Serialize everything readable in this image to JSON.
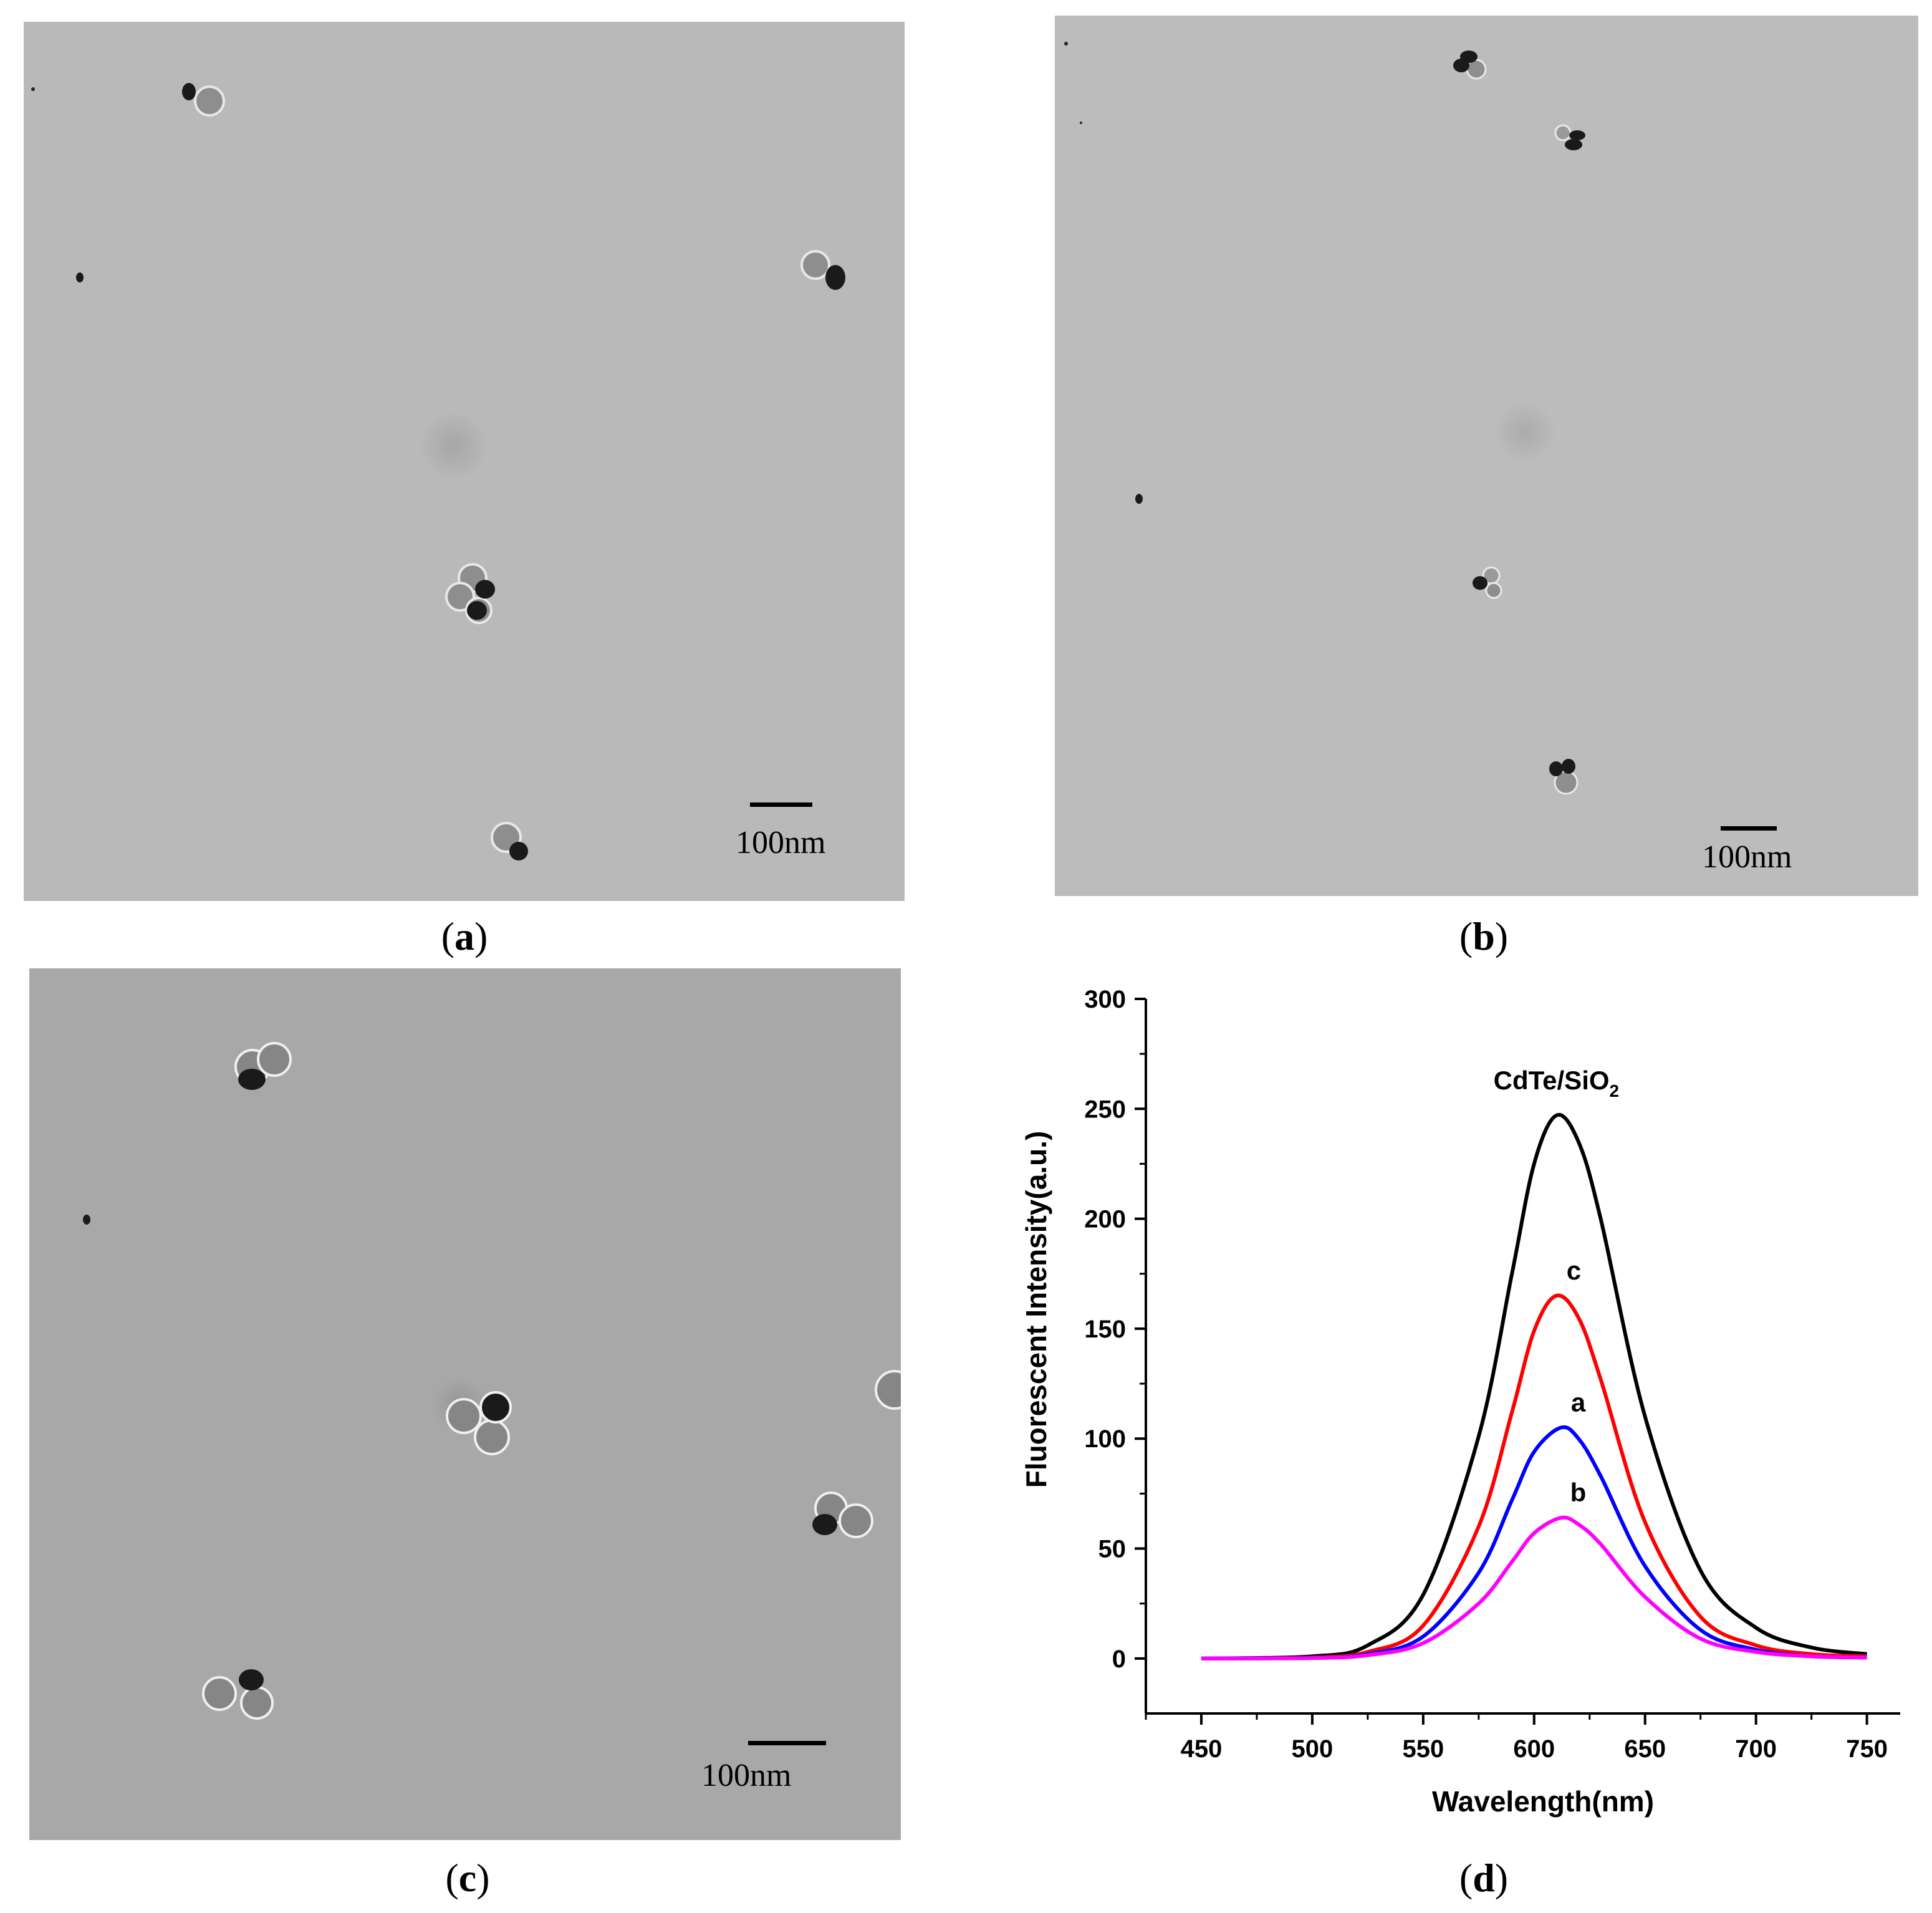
{
  "panels": [
    {
      "id": "a",
      "caption_open": "(",
      "caption_letter": "a",
      "caption_close": ")",
      "scale_label": "100nm"
    },
    {
      "id": "b",
      "caption_open": "(",
      "caption_letter": "b",
      "caption_close": ")",
      "scale_label": "100nm"
    },
    {
      "id": "c",
      "caption_open": "(",
      "caption_letter": "c",
      "caption_close": ")",
      "scale_label": "100nm"
    },
    {
      "id": "d",
      "caption_open": "(",
      "caption_letter": "d",
      "caption_close": ")"
    }
  ],
  "colors": {
    "tem_background": "#b9b9b9",
    "core_dark": "#1a1a1a",
    "shell_gray": "#8e8e8e"
  },
  "chart_data": {
    "type": "line",
    "title": "",
    "xlabel": "Wavelength(nm)",
    "ylabel": "Fluorescent Intensity(a.u.)",
    "xlim": [
      425,
      765
    ],
    "ylim": [
      -25,
      300
    ],
    "xticks": [
      450,
      500,
      550,
      600,
      650,
      700,
      750
    ],
    "yticks": [
      0,
      50,
      100,
      150,
      200,
      250,
      300
    ],
    "grid": false,
    "legend": "none",
    "series": [
      {
        "name": "CdTe/SiO2",
        "label_main": "CdTe/SiO",
        "label_sub": "2",
        "color": "#000000",
        "peak_x": 610,
        "peak_y": 247,
        "x": [
          450,
          500,
          525,
          550,
          575,
          590,
          600,
          610,
          620,
          630,
          650,
          675,
          700,
          725,
          750
        ],
        "y": [
          0,
          1,
          6,
          29,
          101,
          175,
          225,
          247,
          235,
          200,
          110,
          40,
          14,
          5,
          2
        ]
      },
      {
        "name": "c",
        "color": "#ff0000",
        "peak_x": 610,
        "peak_y": 165,
        "x": [
          450,
          500,
          525,
          550,
          575,
          590,
          600,
          610,
          620,
          630,
          650,
          675,
          700,
          725,
          750
        ],
        "y": [
          0,
          0.5,
          3,
          15,
          60,
          112,
          149,
          165,
          155,
          127,
          62,
          19,
          6,
          2,
          1
        ]
      },
      {
        "name": "a",
        "color": "#0000ff",
        "peak_x": 612,
        "peak_y": 105,
        "x": [
          450,
          500,
          525,
          550,
          575,
          590,
          600,
          612,
          620,
          630,
          650,
          675,
          700,
          725,
          750
        ],
        "y": [
          0,
          0.3,
          2,
          10,
          39,
          72,
          94,
          105,
          100,
          83,
          42,
          13,
          4,
          1,
          0.5
        ]
      },
      {
        "name": "b",
        "color": "#ff00ff",
        "peak_x": 612,
        "peak_y": 64,
        "x": [
          450,
          500,
          525,
          550,
          575,
          590,
          600,
          612,
          620,
          630,
          650,
          675,
          700,
          725,
          750
        ],
        "y": [
          0,
          0.2,
          1.5,
          7,
          25,
          44,
          57,
          64,
          61,
          52,
          28,
          9,
          3,
          1,
          0.4
        ]
      }
    ]
  }
}
